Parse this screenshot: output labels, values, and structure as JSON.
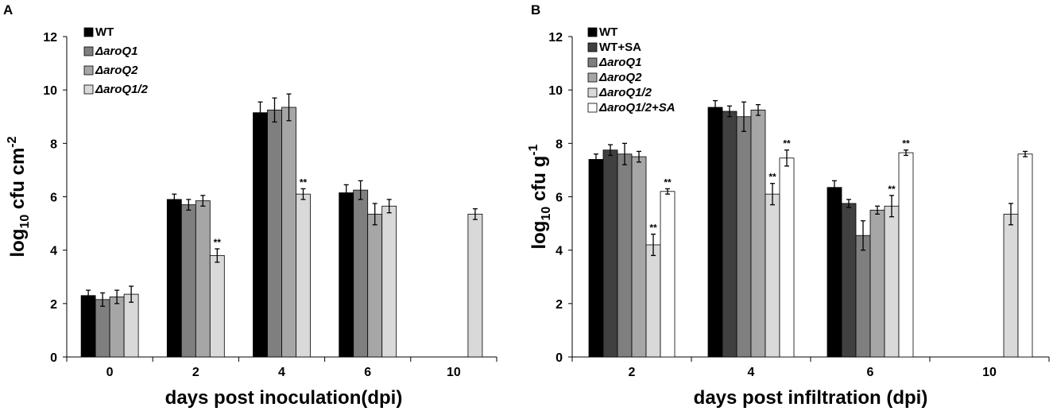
{
  "chart_data": [
    {
      "type": "bar",
      "panel_label": "A",
      "title": "",
      "xlabel": "days post inoculation(dpi)",
      "ylabel": {
        "base": "log",
        "sub": "10",
        "mid": " cfu cm",
        "sup": "-2"
      },
      "ylim": [
        0,
        12
      ],
      "yticks": [
        "0",
        "2",
        "4",
        "6",
        "8",
        "10",
        "12"
      ],
      "categories": [
        "0",
        "2",
        "4",
        "6",
        "10"
      ],
      "legend_position": "top-left",
      "series": [
        {
          "name": "WT",
          "italic": false,
          "color": "#000000",
          "values": [
            2.3,
            5.9,
            9.15,
            6.15,
            null
          ],
          "errors": [
            0.2,
            0.2,
            0.4,
            0.3,
            null
          ],
          "significance": [
            "",
            "",
            "",
            "",
            ""
          ]
        },
        {
          "name": "ΔaroQ1",
          "italic": true,
          "color": "#7f7f7f",
          "values": [
            2.15,
            5.7,
            9.25,
            6.25,
            null
          ],
          "errors": [
            0.25,
            0.2,
            0.45,
            0.35,
            null
          ],
          "significance": [
            "",
            "",
            "",
            "",
            ""
          ]
        },
        {
          "name": "ΔaroQ2",
          "italic": true,
          "color": "#a6a6a6",
          "values": [
            2.25,
            5.85,
            9.35,
            5.35,
            null
          ],
          "errors": [
            0.25,
            0.2,
            0.5,
            0.4,
            null
          ],
          "significance": [
            "",
            "",
            "",
            "",
            ""
          ]
        },
        {
          "name": "ΔaroQ1/2",
          "italic": true,
          "color": "#d9d9d9",
          "values": [
            2.35,
            3.8,
            6.1,
            5.65,
            5.35
          ],
          "errors": [
            0.3,
            0.25,
            0.2,
            0.25,
            0.2
          ],
          "significance": [
            "",
            "**",
            "**",
            "",
            ""
          ]
        }
      ]
    },
    {
      "type": "bar",
      "panel_label": "B",
      "title": "",
      "xlabel": "days post infiltration (dpi)",
      "ylabel": {
        "base": "log",
        "sub": "10",
        "mid": " cfu g",
        "sup": "-1"
      },
      "ylim": [
        0,
        12
      ],
      "yticks": [
        "0",
        "2",
        "4",
        "6",
        "8",
        "10",
        "12"
      ],
      "categories": [
        "2",
        "4",
        "6",
        "10"
      ],
      "legend_position": "top-left",
      "series": [
        {
          "name": "WT",
          "italic": false,
          "color": "#000000",
          "values": [
            7.4,
            9.35,
            6.35,
            null
          ],
          "errors": [
            0.2,
            0.25,
            0.25,
            null
          ],
          "significance": [
            "",
            "",
            "",
            ""
          ]
        },
        {
          "name": "WT+SA",
          "italic": false,
          "color": "#404040",
          "values": [
            7.75,
            9.2,
            5.75,
            null
          ],
          "errors": [
            0.2,
            0.2,
            0.15,
            null
          ],
          "significance": [
            "",
            "",
            "",
            ""
          ]
        },
        {
          "name": "ΔaroQ1",
          "italic": true,
          "color": "#7f7f7f",
          "values": [
            7.6,
            9.0,
            4.55,
            null
          ],
          "errors": [
            0.4,
            0.55,
            0.55,
            null
          ],
          "significance": [
            "",
            "",
            "",
            ""
          ]
        },
        {
          "name": "ΔaroQ2",
          "italic": true,
          "color": "#a6a6a6",
          "values": [
            7.5,
            9.25,
            5.5,
            null
          ],
          "errors": [
            0.2,
            0.2,
            0.15,
            null
          ],
          "significance": [
            "",
            "",
            "",
            ""
          ]
        },
        {
          "name": "ΔaroQ1/2",
          "italic": true,
          "color": "#d9d9d9",
          "values": [
            4.2,
            6.1,
            5.65,
            5.35
          ],
          "errors": [
            0.4,
            0.4,
            0.4,
            0.4
          ],
          "significance": [
            "**",
            "**",
            "**",
            ""
          ]
        },
        {
          "name": "ΔaroQ1/2+SA",
          "italic": true,
          "color": "#ffffff",
          "values": [
            6.2,
            7.45,
            7.65,
            7.6
          ],
          "errors": [
            0.1,
            0.3,
            0.1,
            0.1
          ],
          "significance": [
            "**",
            "**",
            "**",
            ""
          ]
        }
      ]
    }
  ]
}
